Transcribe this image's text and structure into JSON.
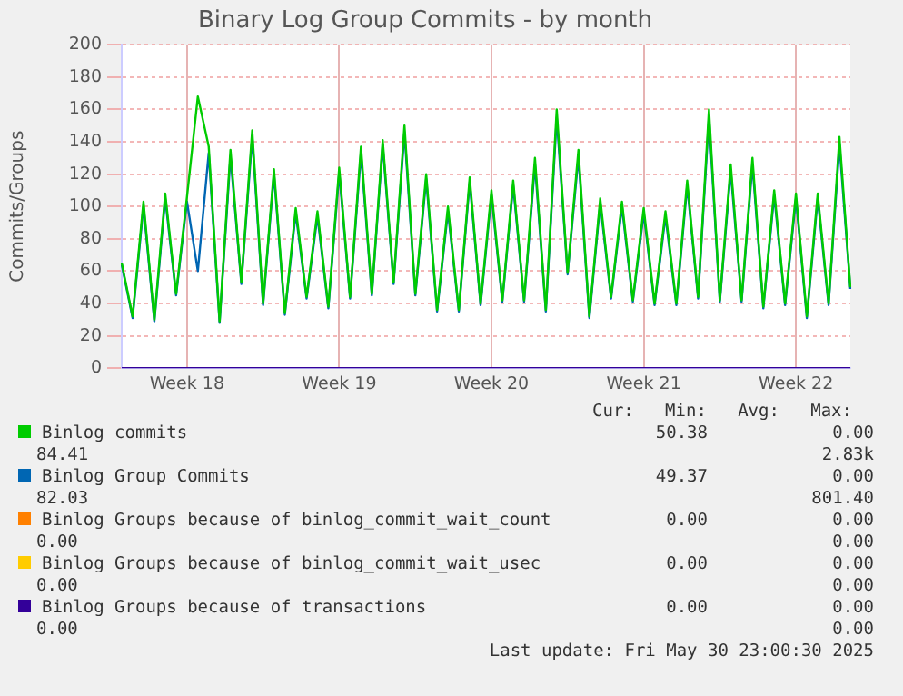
{
  "chart_data": {
    "type": "line",
    "title": "Binary Log Group Commits - by month",
    "ylabel": "Commits/Groups",
    "categories": [
      null,
      null,
      null,
      null,
      null,
      null,
      "Week 18",
      null,
      null,
      null,
      null,
      null,
      null,
      null,
      null,
      null,
      null,
      null,
      null,
      null,
      "Week 19",
      null,
      null,
      null,
      null,
      null,
      null,
      null,
      null,
      null,
      null,
      null,
      null,
      null,
      "Week 20",
      null,
      null,
      null,
      null,
      null,
      null,
      null,
      null,
      null,
      null,
      null,
      null,
      null,
      "Week 21",
      null,
      null,
      null,
      null,
      null,
      null,
      null,
      null,
      null,
      null,
      null,
      null,
      null,
      "Week 22",
      null,
      null,
      null,
      null,
      null
    ],
    "series": [
      {
        "name": "Binlog commits",
        "color": "#00cc00",
        "values": [
          65,
          32,
          103,
          30,
          108,
          46,
          106,
          168,
          137,
          29,
          135,
          53,
          147,
          40,
          123,
          34,
          99,
          44,
          97,
          38,
          124,
          44,
          137,
          46,
          141,
          53,
          150,
          46,
          120,
          36,
          100,
          36,
          118,
          40,
          110,
          42,
          116,
          42,
          130,
          36,
          160,
          59,
          135,
          32,
          105,
          44,
          103,
          42,
          99,
          40,
          97,
          40,
          116,
          44,
          160,
          42,
          126,
          42,
          130,
          38,
          110,
          40,
          108,
          32,
          108,
          40,
          143,
          50
        ]
      },
      {
        "name": "Binlog Group Commits",
        "color": "#0066b3",
        "values": [
          64,
          31,
          100,
          29,
          105,
          45,
          103,
          60,
          133,
          28,
          131,
          52,
          143,
          39,
          120,
          33,
          96,
          43,
          94,
          37,
          121,
          43,
          133,
          45,
          138,
          52,
          146,
          45,
          117,
          35,
          97,
          35,
          115,
          39,
          107,
          41,
          113,
          41,
          126,
          35,
          155,
          58,
          131,
          31,
          102,
          43,
          100,
          41,
          96,
          39,
          94,
          39,
          113,
          43,
          155,
          41,
          122,
          41,
          126,
          37,
          107,
          39,
          105,
          31,
          105,
          39,
          138,
          49
        ]
      },
      {
        "name": "Binlog Groups because of binlog_commit_wait_count",
        "color": "#ff8000",
        "values": [
          null,
          null,
          null,
          null,
          null,
          null,
          null,
          null,
          null,
          null,
          null,
          null,
          null,
          null,
          null,
          null,
          null,
          null,
          null,
          null,
          null,
          null,
          null,
          null,
          null,
          null,
          null,
          null,
          null,
          null,
          null,
          null,
          null,
          null,
          null,
          null,
          null,
          null,
          null,
          null,
          null,
          null,
          null,
          null,
          null,
          null,
          null,
          null,
          null,
          null,
          null,
          null,
          null,
          null,
          null,
          null,
          null,
          null,
          null,
          null,
          null,
          null,
          null,
          null,
          null,
          null,
          null,
          null
        ]
      },
      {
        "name": "Binlog Groups because of binlog_commit_wait_usec",
        "color": "#ffcc00",
        "values": [
          null,
          null,
          null,
          null,
          null,
          null,
          null,
          null,
          null,
          null,
          null,
          null,
          null,
          null,
          null,
          null,
          null,
          null,
          null,
          null,
          null,
          null,
          null,
          null,
          null,
          null,
          null,
          null,
          null,
          null,
          null,
          null,
          null,
          null,
          null,
          null,
          null,
          null,
          null,
          null,
          null,
          null,
          null,
          null,
          null,
          null,
          null,
          null,
          null,
          null,
          null,
          null,
          null,
          null,
          null,
          null,
          null,
          null,
          null,
          null,
          null,
          null,
          null,
          null,
          null,
          null,
          null,
          null
        ]
      },
      {
        "name": "Binlog Groups because of transactions",
        "color": "#330099",
        "values": [
          0,
          0,
          0,
          0,
          0,
          0,
          0,
          0,
          0,
          0,
          0,
          0,
          0,
          0,
          0,
          0,
          0,
          0,
          0,
          0,
          0,
          0,
          0,
          0,
          0,
          0,
          0,
          0,
          0,
          0,
          0,
          0,
          0,
          0,
          0,
          0,
          0,
          0,
          0,
          0,
          0,
          0,
          0,
          0,
          0,
          0,
          0,
          0,
          0,
          0,
          0,
          0,
          0,
          0,
          0,
          0,
          0,
          0,
          0,
          0,
          0,
          0,
          0,
          0,
          0,
          0,
          0,
          0
        ]
      }
    ],
    "ylim": [
      0,
      200
    ],
    "yticks": [
      0,
      20,
      40,
      60,
      80,
      100,
      120,
      140,
      160,
      180,
      200
    ],
    "grid": true,
    "legend": "bottom",
    "marker": "none",
    "line_style": "solid",
    "annotations": [
      "Cur:   Min:   Avg:   Max:",
      "50.38            0.00",
      "84.41",
      "2.83k",
      "49.37            0.00",
      "82.03",
      "801.40",
      "0.00            0.00",
      "0.00",
      "0.00",
      "0.00            0.00",
      "0.00",
      "0.00",
      "0.00            0.00",
      "0.00",
      "0.00",
      "Last update: Fri May 30 23:00:30 2025"
    ]
  }
}
